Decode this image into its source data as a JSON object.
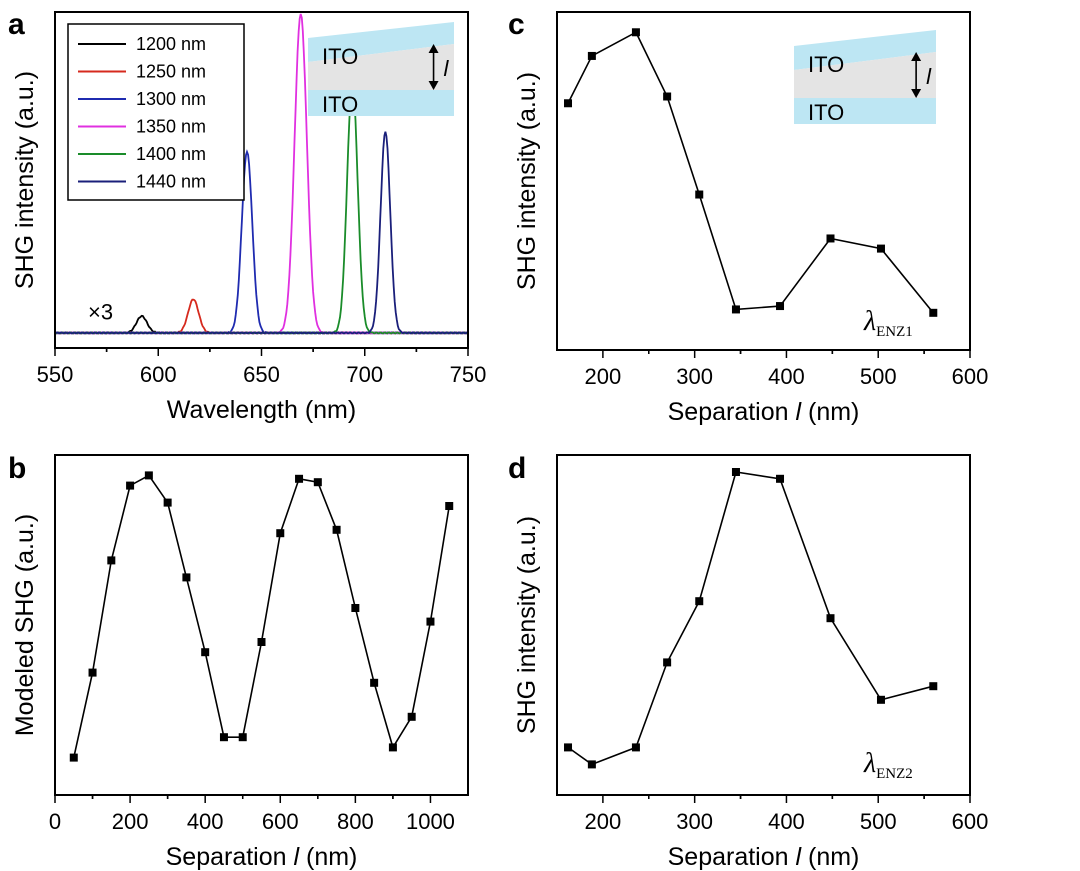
{
  "chart_data": [
    {
      "panel": "a",
      "type": "line",
      "xlabel": "Wavelength (nm)",
      "ylabel": "SHG intensity (a.u.)",
      "xlim": [
        550,
        750
      ],
      "xticks": [
        550,
        600,
        650,
        700,
        750
      ],
      "ylim": [
        0,
        1.0
      ],
      "annotation": "×3",
      "legend_position": "top-left",
      "inset": {
        "top_layer": "ITO",
        "bottom_layer": "ITO",
        "separation_symbol": "l"
      },
      "series": [
        {
          "name": "1200 nm",
          "color": "#000000",
          "peak_x": 592,
          "peak_y": 0.05,
          "fwhm": 6
        },
        {
          "name": "1250 nm",
          "color": "#d62a1e",
          "peak_x": 617,
          "peak_y": 0.1,
          "fwhm": 6
        },
        {
          "name": "1300 nm",
          "color": "#1f2bb0",
          "peak_x": 643,
          "peak_y": 0.54,
          "fwhm": 6
        },
        {
          "name": "1350 nm",
          "color": "#e030e0",
          "peak_x": 669,
          "peak_y": 0.95,
          "fwhm": 7
        },
        {
          "name": "1400 nm",
          "color": "#1a8c2a",
          "peak_x": 694,
          "peak_y": 0.75,
          "fwhm": 6
        },
        {
          "name": "1440 nm",
          "color": "#1a1f7a",
          "peak_x": 710,
          "peak_y": 0.6,
          "fwhm": 5.5
        }
      ]
    },
    {
      "panel": "b",
      "type": "line",
      "xlabel_prefix": "Separation ",
      "xlabel_italic": "l",
      "xlabel_suffix": " (nm)",
      "ylabel": "Modeled SHG (a.u.)",
      "xlim": [
        0,
        1100
      ],
      "xticks": [
        0,
        200,
        400,
        600,
        800,
        1000
      ],
      "ylim": [
        0,
        1.0
      ],
      "x": [
        50,
        100,
        150,
        200,
        250,
        300,
        350,
        400,
        450,
        500,
        550,
        600,
        650,
        700,
        750,
        800,
        850,
        900,
        950,
        1000,
        1050
      ],
      "values": [
        0.11,
        0.36,
        0.69,
        0.91,
        0.94,
        0.86,
        0.64,
        0.42,
        0.17,
        0.17,
        0.45,
        0.77,
        0.93,
        0.92,
        0.78,
        0.55,
        0.33,
        0.14,
        0.23,
        0.51,
        0.85
      ]
    },
    {
      "panel": "c",
      "type": "line",
      "xlabel_prefix": "Separation ",
      "xlabel_italic": "l",
      "xlabel_suffix": " (nm)",
      "ylabel": "SHG intensity (a.u.)",
      "xlim": [
        150,
        600
      ],
      "xticks": [
        200,
        300,
        400,
        500,
        600
      ],
      "ylim": [
        0,
        1.0
      ],
      "annotation_symbol": "λ",
      "annotation_subscript": "ENZ1",
      "inset": {
        "top_layer": "ITO",
        "bottom_layer": "ITO",
        "separation_symbol": "l"
      },
      "x": [
        162,
        188,
        236,
        270,
        305,
        345,
        393,
        448,
        503,
        560
      ],
      "values": [
        0.73,
        0.87,
        0.94,
        0.75,
        0.46,
        0.12,
        0.13,
        0.33,
        0.3,
        0.11
      ]
    },
    {
      "panel": "d",
      "type": "line",
      "xlabel_prefix": "Separation ",
      "xlabel_italic": "l",
      "xlabel_suffix": " (nm)",
      "ylabel": "SHG intensity (a.u.)",
      "xlim": [
        150,
        600
      ],
      "xticks": [
        200,
        300,
        400,
        500,
        600
      ],
      "ylim": [
        0,
        1.0
      ],
      "annotation_symbol": "λ",
      "annotation_subscript": "ENZ2",
      "x": [
        162,
        188,
        236,
        270,
        305,
        345,
        393,
        448,
        503,
        560
      ],
      "values": [
        0.14,
        0.09,
        0.14,
        0.39,
        0.57,
        0.95,
        0.93,
        0.52,
        0.28,
        0.32
      ]
    }
  ]
}
